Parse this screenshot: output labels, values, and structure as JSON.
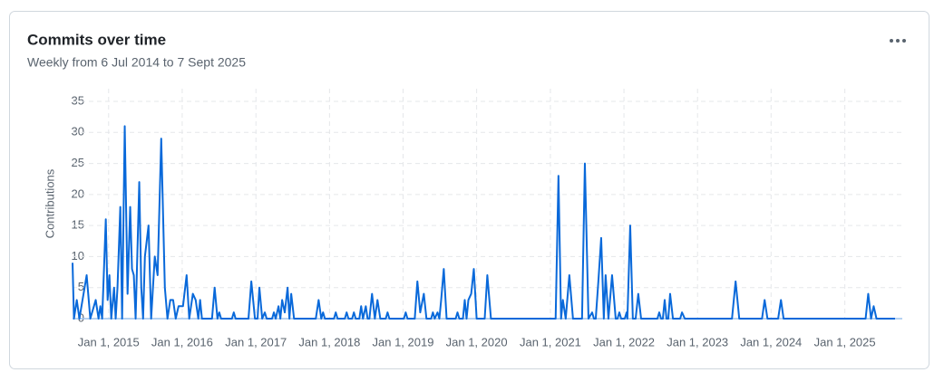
{
  "chart_data": {
    "type": "line",
    "title": "Commits over time",
    "subtitle": "Weekly from 6 Jul 2014 to 7 Sept 2025",
    "y_label": "Contributions",
    "xlim": [
      "2014-07-06",
      "2025-09-07"
    ],
    "xticks": [
      {
        "value": "2015-01-01",
        "label": "Jan 1, 2015"
      },
      {
        "value": "2016-01-01",
        "label": "Jan 1, 2016"
      },
      {
        "value": "2017-01-01",
        "label": "Jan 1, 2017"
      },
      {
        "value": "2018-01-01",
        "label": "Jan 1, 2018"
      },
      {
        "value": "2019-01-01",
        "label": "Jan 1, 2019"
      },
      {
        "value": "2020-01-01",
        "label": "Jan 1, 2020"
      },
      {
        "value": "2021-01-01",
        "label": "Jan 1, 2021"
      },
      {
        "value": "2022-01-01",
        "label": "Jan 1, 2022"
      },
      {
        "value": "2023-01-01",
        "label": "Jan 1, 2023"
      },
      {
        "value": "2024-01-01",
        "label": "Jan 1, 2024"
      },
      {
        "value": "2025-01-01",
        "label": "Jan 1, 2025"
      }
    ],
    "ylim": [
      0,
      35
    ],
    "yticks": [
      0,
      5,
      10,
      15,
      20,
      25,
      30,
      35
    ],
    "grid": true,
    "series": [
      {
        "name": "Contributions",
        "color": "#0969da",
        "x": [
          "2014-07-06",
          "2014-07-13",
          "2014-07-27",
          "2014-08-09",
          "2014-09-14",
          "2014-10-02",
          "2014-10-29",
          "2014-11-12",
          "2014-11-21",
          "2014-11-30",
          "2014-12-18",
          "2014-12-27",
          "2015-01-05",
          "2015-01-14",
          "2015-01-28",
          "2015-02-05",
          "2015-02-14",
          "2015-02-28",
          "2015-03-09",
          "2015-03-22",
          "2015-04-05",
          "2015-04-18",
          "2015-04-27",
          "2015-05-06",
          "2015-05-15",
          "2015-06-02",
          "2015-06-12",
          "2015-06-21",
          "2015-06-30",
          "2015-07-18",
          "2015-07-31",
          "2015-08-18",
          "2015-09-01",
          "2015-09-19",
          "2015-10-07",
          "2015-10-20",
          "2015-11-03",
          "2015-11-17",
          "2015-11-30",
          "2015-12-14",
          "2016-01-05",
          "2016-01-23",
          "2016-02-05",
          "2016-02-23",
          "2016-03-08",
          "2016-03-21",
          "2016-03-30",
          "2016-04-08",
          "2016-05-28",
          "2016-06-10",
          "2016-06-24",
          "2016-07-03",
          "2016-07-12",
          "2016-09-04",
          "2016-09-13",
          "2016-09-22",
          "2016-11-25",
          "2016-12-09",
          "2016-12-27",
          "2017-01-09",
          "2017-01-18",
          "2017-02-01",
          "2017-02-14",
          "2017-02-23",
          "2017-03-22",
          "2017-03-31",
          "2017-04-09",
          "2017-04-23",
          "2017-05-02",
          "2017-05-11",
          "2017-05-24",
          "2017-06-07",
          "2017-06-16",
          "2017-06-25",
          "2017-07-09",
          "2017-10-25",
          "2017-11-08",
          "2017-11-21",
          "2017-11-30",
          "2017-12-09",
          "2018-01-23",
          "2018-02-01",
          "2018-02-10",
          "2018-03-18",
          "2018-03-27",
          "2018-04-05",
          "2018-04-23",
          "2018-05-02",
          "2018-05-11",
          "2018-05-29",
          "2018-06-07",
          "2018-06-16",
          "2018-06-30",
          "2018-07-09",
          "2018-07-18",
          "2018-07-31",
          "2018-08-14",
          "2018-08-27",
          "2018-09-10",
          "2018-10-07",
          "2018-10-16",
          "2018-10-25",
          "2019-01-05",
          "2019-01-14",
          "2019-01-23",
          "2019-02-28",
          "2019-03-13",
          "2019-03-27",
          "2019-04-14",
          "2019-04-27",
          "2019-05-20",
          "2019-05-29",
          "2019-06-07",
          "2019-06-21",
          "2019-06-30",
          "2019-07-09",
          "2019-07-22",
          "2019-08-05",
          "2019-09-19",
          "2019-09-28",
          "2019-10-07",
          "2019-10-25",
          "2019-11-03",
          "2019-11-12",
          "2019-11-21",
          "2019-12-05",
          "2019-12-18",
          "2020-01-01",
          "2020-02-10",
          "2020-02-23",
          "2020-03-12",
          "2021-01-27",
          "2021-02-10",
          "2021-02-23",
          "2021-03-04",
          "2021-03-18",
          "2021-04-05",
          "2021-04-23",
          "2021-06-07",
          "2021-06-21",
          "2021-07-09",
          "2021-07-27",
          "2021-08-05",
          "2021-08-14",
          "2021-08-27",
          "2021-09-10",
          "2021-09-23",
          "2021-10-02",
          "2021-10-16",
          "2021-11-03",
          "2021-11-21",
          "2021-11-30",
          "2021-12-09",
          "2021-12-18",
          "2022-01-05",
          "2022-01-14",
          "2022-01-18",
          "2022-02-01",
          "2022-02-14",
          "2022-02-28",
          "2022-03-13",
          "2022-03-27",
          "2022-06-16",
          "2022-06-25",
          "2022-07-04",
          "2022-07-13",
          "2022-07-22",
          "2022-07-31",
          "2022-08-09",
          "2022-08-18",
          "2022-09-01",
          "2022-10-07",
          "2022-10-16",
          "2022-10-30",
          "2023-06-21",
          "2023-07-09",
          "2023-07-27",
          "2023-11-17",
          "2023-11-30",
          "2023-12-14",
          "2024-02-05",
          "2024-02-19",
          "2024-03-03",
          "2025-04-14",
          "2025-04-27",
          "2025-05-11",
          "2025-05-24",
          "2025-06-07",
          "2025-09-07"
        ],
        "values": [
          9,
          0,
          3,
          0,
          7,
          0,
          3,
          0,
          2,
          0,
          16,
          3,
          7,
          0,
          5,
          0,
          5,
          18,
          0,
          31,
          4,
          18,
          8,
          7,
          0,
          22,
          5,
          0,
          10,
          15,
          0,
          10,
          7,
          29,
          5,
          0,
          3,
          3,
          0,
          2,
          2,
          7,
          0,
          4,
          3,
          0,
          3,
          0,
          0,
          5,
          0,
          1,
          0,
          0,
          1,
          0,
          0,
          6,
          0,
          0,
          5,
          0,
          1,
          0,
          0,
          1,
          0,
          2,
          0,
          3,
          1,
          5,
          0,
          4,
          0,
          0,
          3,
          0,
          1,
          0,
          0,
          1,
          0,
          0,
          1,
          0,
          0,
          1,
          0,
          0,
          2,
          0,
          2,
          0,
          0,
          4,
          0,
          3,
          0,
          0,
          1,
          0,
          0,
          1,
          0,
          0,
          6,
          1,
          4,
          0,
          0,
          1,
          0,
          1,
          0,
          3,
          8,
          0,
          0,
          1,
          0,
          0,
          3,
          0,
          3,
          4,
          8,
          0,
          0,
          7,
          0,
          0,
          23,
          0,
          3,
          0,
          7,
          0,
          0,
          25,
          0,
          1,
          0,
          0,
          6,
          13,
          0,
          7,
          0,
          7,
          0,
          0,
          1,
          0,
          0,
          1,
          0,
          15,
          0,
          0,
          4,
          0,
          0,
          1,
          0,
          0,
          3,
          0,
          0,
          4,
          0,
          0,
          1,
          0,
          0,
          6,
          0,
          0,
          3,
          0,
          0,
          3,
          0,
          0,
          4,
          0,
          2,
          0,
          0
        ]
      }
    ]
  }
}
